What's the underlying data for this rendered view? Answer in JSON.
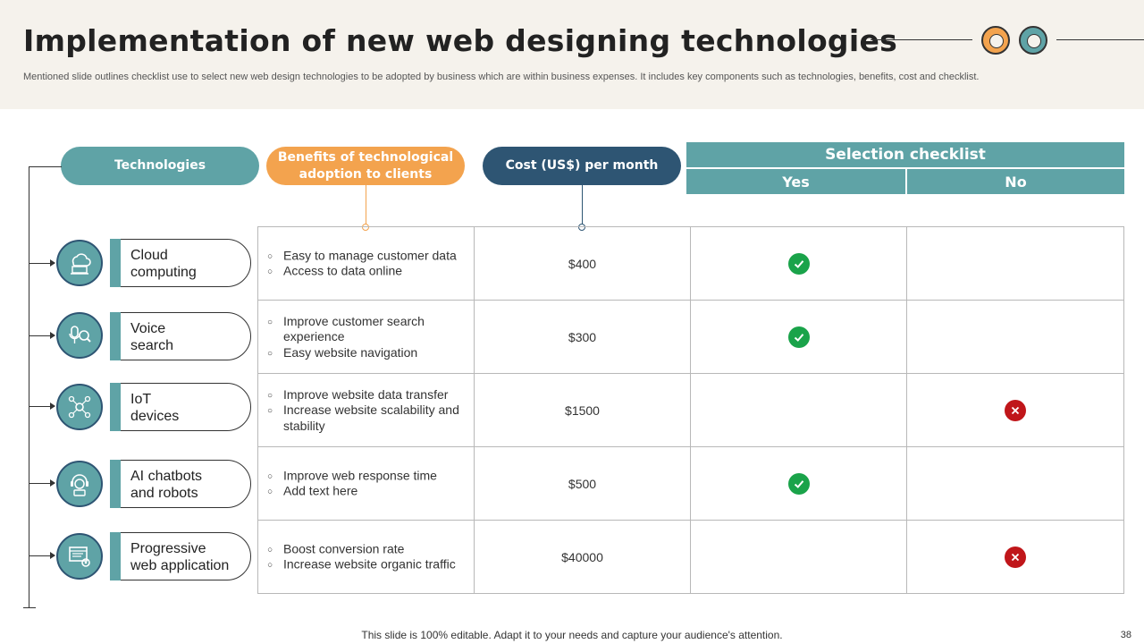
{
  "header": {
    "title": "Implementation of new web designing technologies",
    "subtitle": "Mentioned slide outlines checklist use to select new web design technologies to be adopted by business which are within business expenses. It includes key components such as technologies, benefits, cost and checklist."
  },
  "colors": {
    "teal": "#5fa3a6",
    "orange": "#f3a34e",
    "navy": "#2e5573",
    "yes": "#1aa34a",
    "no": "#c0161a"
  },
  "columns": {
    "technologies": "Technologies",
    "benefits": "Benefits of technological adoption to clients",
    "cost": "Cost (US$) per month",
    "checklist": "Selection checklist",
    "yes": "Yes",
    "no": "No"
  },
  "rows": [
    {
      "icon": "cloud-computing-icon",
      "technology": "Cloud computing",
      "benefits": [
        "Easy to manage customer data",
        "Access to data online"
      ],
      "cost": "$400",
      "selection": "yes"
    },
    {
      "icon": "voice-search-icon",
      "technology": "Voice search",
      "benefits": [
        "Improve customer search experience",
        "Easy website navigation"
      ],
      "cost": "$300",
      "selection": "yes"
    },
    {
      "icon": "iot-network-icon",
      "technology": "IoT devices",
      "benefits": [
        "Improve website data transfer",
        "Increase website scalability and stability"
      ],
      "cost": "$1500",
      "selection": "no"
    },
    {
      "icon": "chatbot-robot-icon",
      "technology": "AI chatbots and robots",
      "benefits": [
        "Improve web response time",
        "Add text here"
      ],
      "cost": "$500",
      "selection": "yes"
    },
    {
      "icon": "web-app-icon",
      "technology": "Progressive web application",
      "benefits": [
        "Boost conversion rate",
        "Increase website organic traffic"
      ],
      "cost": "$40000",
      "selection": "no"
    }
  ],
  "footer": {
    "note": "This slide is 100% editable. Adapt it to your needs and capture your audience's attention.",
    "page": "38"
  }
}
